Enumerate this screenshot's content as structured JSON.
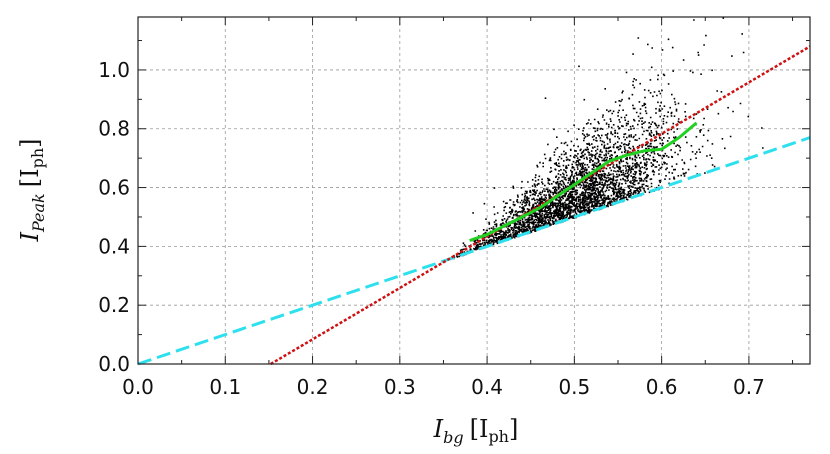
{
  "chart_data": {
    "type": "scatter",
    "title": "",
    "xlabel": {
      "main": "I",
      "sub": "bg",
      "unit": "[I",
      "unit_sub": "ph",
      "unit_close": "]"
    },
    "ylabel": {
      "main": "I",
      "sub": "Peak",
      "unit": "[I",
      "unit_sub": "ph",
      "unit_close": "]"
    },
    "xlim": [
      0.0,
      0.77
    ],
    "ylim": [
      0.0,
      1.18
    ],
    "x_ticks": [
      "0.0",
      "0.1",
      "0.2",
      "0.3",
      "0.4",
      "0.5",
      "0.6",
      "0.7"
    ],
    "x_tick_values": [
      0.0,
      0.1,
      0.2,
      0.3,
      0.4,
      0.5,
      0.6,
      0.7
    ],
    "y_ticks": [
      "0.0",
      "0.2",
      "0.4",
      "0.6",
      "0.8",
      "1.0"
    ],
    "y_tick_values": [
      0.0,
      0.2,
      0.4,
      0.6,
      0.8,
      1.0
    ],
    "grid": true,
    "scatter_cloud": {
      "color": "#000000",
      "x_range": [
        0.36,
        0.73
      ],
      "lower_bound_line": "cyan",
      "point_count": 6000
    },
    "series": [
      {
        "style": "dashed",
        "color": "#2ee0ee",
        "x": [
          0.0,
          0.77
        ],
        "y": [
          0.0,
          0.77
        ]
      },
      {
        "style": "dotted",
        "color": "#d01010",
        "x": [
          0.152,
          0.77
        ],
        "y": [
          0.0,
          1.08
        ]
      },
      {
        "style": "solid",
        "color": "#22d022",
        "x": [
          0.38,
          0.4,
          0.42,
          0.44,
          0.46,
          0.48,
          0.5,
          0.52,
          0.54,
          0.56,
          0.58,
          0.6,
          0.62,
          0.64
        ],
        "y": [
          0.42,
          0.44,
          0.47,
          0.5,
          0.53,
          0.57,
          0.61,
          0.65,
          0.69,
          0.71,
          0.725,
          0.73,
          0.77,
          0.82
        ]
      }
    ]
  }
}
